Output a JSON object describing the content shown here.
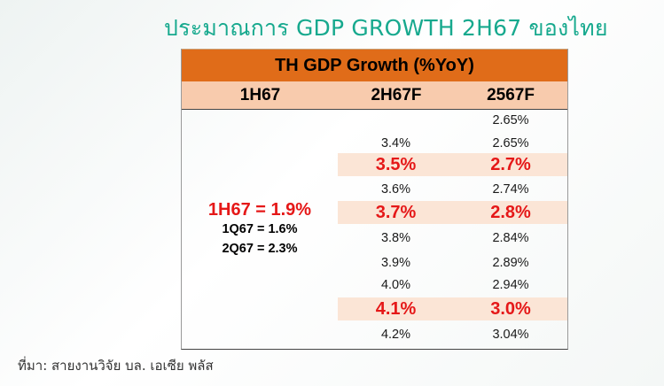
{
  "title": "ประมาณการ GDP GROWTH 2H67 ของไทย",
  "table": {
    "header_main": "TH GDP Growth (%YoY)",
    "columns": [
      "1H67",
      "2H67F",
      "2567F"
    ],
    "left_main": "1H67 = 1.9%",
    "left_sub": [
      "1Q67 = 1.6%",
      "2Q67 = 2.3%"
    ],
    "rows": [
      {
        "h2": "",
        "full": "2.65%",
        "highlight": false
      },
      {
        "h2": "3.4%",
        "full": "2.65%",
        "highlight": false
      },
      {
        "h2": "3.5%",
        "full": "2.7%",
        "highlight": true
      },
      {
        "h2": "3.6%",
        "full": "2.74%",
        "highlight": false
      },
      {
        "h2": "3.7%",
        "full": "2.8%",
        "highlight": true
      },
      {
        "h2": "3.8%",
        "full": "2.84%",
        "highlight": false
      },
      {
        "h2": "3.9%",
        "full": "2.89%",
        "highlight": false
      },
      {
        "h2": "4.0%",
        "full": "2.94%",
        "highlight": false
      },
      {
        "h2": "4.1%",
        "full": "3.0%",
        "highlight": true
      },
      {
        "h2": "4.2%",
        "full": "3.04%",
        "highlight": false
      }
    ]
  },
  "source": "ที่มา: สายงานวิจัย บล. เอเซีย พลัส",
  "colors": {
    "title": "#17a98e",
    "header_main_bg": "#e06c19",
    "header_sub_bg": "#f8cbad",
    "highlight_bg": "#fbe5d6",
    "highlight_text": "#e51818"
  }
}
